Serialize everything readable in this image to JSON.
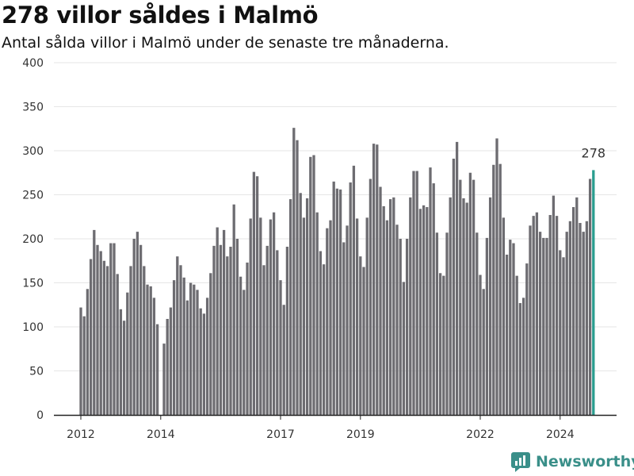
{
  "header": {
    "title": "278 villor såldes i Malmö",
    "subtitle": "Antal sålda villor i Malmö under de senaste tre månaderna."
  },
  "brand": {
    "name": "Newsworthy",
    "logo_icon": "newsworthy-chart-icon",
    "color": "#3a8f89"
  },
  "colors": {
    "bar": "#6d6c71",
    "highlight": "#2a9d8f",
    "grid": "#e6e6e6"
  },
  "chart_data": {
    "type": "bar",
    "title": "278 villor såldes i Malmö",
    "subtitle": "Antal sålda villor i Malmö under de senaste tre månaderna.",
    "ylim": [
      0,
      400
    ],
    "yticks": [
      0,
      50,
      100,
      150,
      200,
      250,
      300,
      350,
      400
    ],
    "xticks": [
      "2012",
      "2014",
      "2017",
      "2019",
      "2022",
      "2024"
    ],
    "xtick_positions": [
      0,
      24,
      60,
      84,
      120,
      144
    ],
    "grid": "horizontal",
    "highlight": {
      "index": 154,
      "label": "278"
    },
    "values": [
      122,
      112,
      143,
      177,
      210,
      193,
      186,
      175,
      169,
      195,
      195,
      160,
      120,
      107,
      139,
      169,
      200,
      208,
      193,
      169,
      148,
      146,
      133,
      103,
      null,
      81,
      109,
      122,
      153,
      180,
      170,
      156,
      130,
      150,
      148,
      142,
      121,
      115,
      133,
      161,
      192,
      213,
      193,
      210,
      180,
      191,
      239,
      200,
      157,
      142,
      173,
      223,
      276,
      271,
      224,
      170,
      192,
      222,
      230,
      187,
      153,
      125,
      191,
      245,
      326,
      312,
      252,
      224,
      246,
      293,
      295,
      230,
      186,
      171,
      212,
      221,
      265,
      257,
      256,
      196,
      215,
      264,
      283,
      223,
      180,
      168,
      224,
      268,
      308,
      307,
      259,
      237,
      221,
      245,
      247,
      216,
      200,
      151,
      200,
      247,
      277,
      277,
      234,
      238,
      236,
      281,
      263,
      207,
      161,
      158,
      207,
      247,
      291,
      310,
      267,
      246,
      241,
      275,
      267,
      207,
      159,
      143,
      201,
      247,
      284,
      314,
      285,
      224,
      182,
      199,
      195,
      158,
      127,
      133,
      172,
      215,
      226,
      230,
      208,
      201,
      201,
      227,
      249,
      226,
      187,
      179,
      208,
      220,
      236,
      247,
      218,
      208,
      220,
      268,
      278
    ]
  }
}
